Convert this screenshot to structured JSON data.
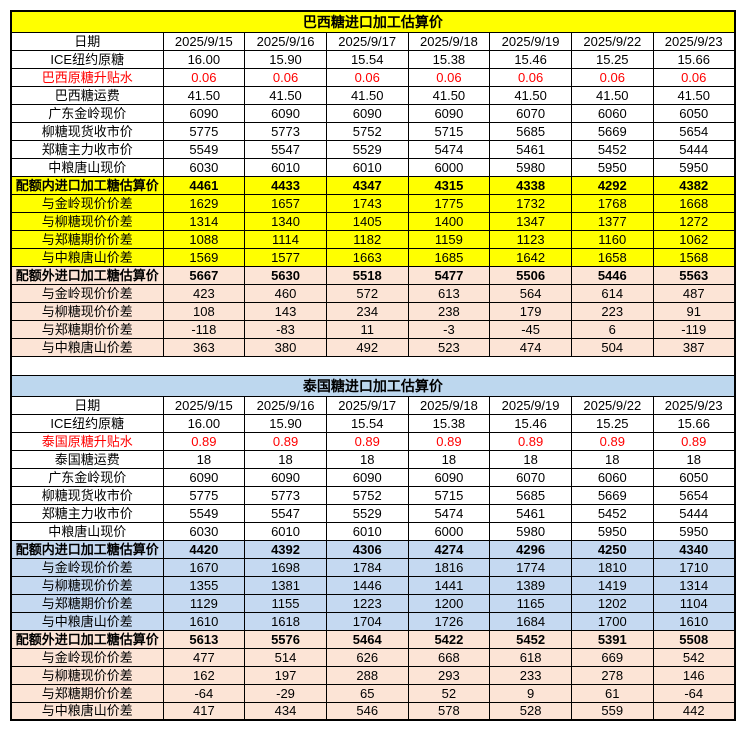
{
  "colors": {
    "brazil_title_bg": "#FFFF00",
    "brazil_quota_in_bg": "#FFFF00",
    "thailand_title_bg": "#BDD7EE",
    "thailand_quota_in_bg": "#C5D9F1",
    "quota_out_bg": "#FCE4D6",
    "red_text": "#FF0000",
    "border": "#000000",
    "default_cell_bg": "#FFFFFF"
  },
  "tables": [
    {
      "id": "brazil",
      "title": "巴西糖进口加工估算价",
      "title_bg_key": "brazil_title_bg",
      "quota_in_bg_key": "brazil_quota_in_bg",
      "date_label": "日期",
      "dates": [
        "2025/9/15",
        "2025/9/16",
        "2025/9/17",
        "2025/9/18",
        "2025/9/19",
        "2025/9/22",
        "2025/9/23"
      ],
      "rows": [
        {
          "label": "ICE纽约原糖",
          "style": "plain",
          "values": [
            "16.00",
            "15.90",
            "15.54",
            "15.38",
            "15.46",
            "15.25",
            "15.66"
          ]
        },
        {
          "label": "巴西原糖升贴水",
          "style": "red",
          "values": [
            "0.06",
            "0.06",
            "0.06",
            "0.06",
            "0.06",
            "0.06",
            "0.06"
          ]
        },
        {
          "label": "巴西糖运费",
          "style": "plain",
          "values": [
            "41.50",
            "41.50",
            "41.50",
            "41.50",
            "41.50",
            "41.50",
            "41.50"
          ]
        },
        {
          "label": "广东金岭现价",
          "style": "plain",
          "values": [
            "6090",
            "6090",
            "6090",
            "6090",
            "6070",
            "6060",
            "6050"
          ]
        },
        {
          "label": "柳糖现货收市价",
          "style": "plain",
          "values": [
            "5775",
            "5773",
            "5752",
            "5715",
            "5685",
            "5669",
            "5654"
          ]
        },
        {
          "label": "郑糖主力收市价",
          "style": "plain",
          "values": [
            "5549",
            "5547",
            "5529",
            "5474",
            "5461",
            "5452",
            "5444"
          ]
        },
        {
          "label": "中粮唐山现价",
          "style": "plain",
          "values": [
            "6030",
            "6010",
            "6010",
            "6000",
            "5980",
            "5950",
            "5950"
          ]
        },
        {
          "label": "配额内进口加工糖估算价",
          "style": "quota_in",
          "values": [
            "4461",
            "4433",
            "4347",
            "4315",
            "4338",
            "4292",
            "4382"
          ]
        },
        {
          "label": "与金岭现价价差",
          "style": "quota_in_diff",
          "values": [
            "1629",
            "1657",
            "1743",
            "1775",
            "1732",
            "1768",
            "1668"
          ]
        },
        {
          "label": "与柳糖现价价差",
          "style": "quota_in_diff",
          "values": [
            "1314",
            "1340",
            "1405",
            "1400",
            "1347",
            "1377",
            "1272"
          ]
        },
        {
          "label": "与郑糖期价价差",
          "style": "quota_in_diff",
          "values": [
            "1088",
            "1114",
            "1182",
            "1159",
            "1123",
            "1160",
            "1062"
          ]
        },
        {
          "label": "与中粮唐山价差",
          "style": "quota_in_diff",
          "values": [
            "1569",
            "1577",
            "1663",
            "1685",
            "1642",
            "1658",
            "1568"
          ]
        },
        {
          "label": "配额外进口加工糖估算价",
          "style": "quota_out",
          "values": [
            "5667",
            "5630",
            "5518",
            "5477",
            "5506",
            "5446",
            "5563"
          ]
        },
        {
          "label": "与金岭现价价差",
          "style": "quota_out_diff",
          "values": [
            "423",
            "460",
            "572",
            "613",
            "564",
            "614",
            "487"
          ]
        },
        {
          "label": "与柳糖现价价差",
          "style": "quota_out_diff",
          "values": [
            "108",
            "143",
            "234",
            "238",
            "179",
            "223",
            "91"
          ]
        },
        {
          "label": "与郑糖期价价差",
          "style": "quota_out_diff",
          "values": [
            "-118",
            "-83",
            "11",
            "-3",
            "-45",
            "6",
            "-119"
          ]
        },
        {
          "label": "与中粮唐山价差",
          "style": "quota_out_diff",
          "values": [
            "363",
            "380",
            "492",
            "523",
            "474",
            "504",
            "387"
          ]
        }
      ]
    },
    {
      "id": "thailand",
      "title": "泰国糖进口加工估算价",
      "title_bg_key": "thailand_title_bg",
      "quota_in_bg_key": "thailand_quota_in_bg",
      "date_label": "日期",
      "dates": [
        "2025/9/15",
        "2025/9/16",
        "2025/9/17",
        "2025/9/18",
        "2025/9/19",
        "2025/9/22",
        "2025/9/23"
      ],
      "rows": [
        {
          "label": "ICE纽约原糖",
          "style": "plain",
          "values": [
            "16.00",
            "15.90",
            "15.54",
            "15.38",
            "15.46",
            "15.25",
            "15.66"
          ]
        },
        {
          "label": "泰国原糖升贴水",
          "style": "red",
          "values": [
            "0.89",
            "0.89",
            "0.89",
            "0.89",
            "0.89",
            "0.89",
            "0.89"
          ]
        },
        {
          "label": "泰国糖运费",
          "style": "plain",
          "values": [
            "18",
            "18",
            "18",
            "18",
            "18",
            "18",
            "18"
          ]
        },
        {
          "label": "广东金岭现价",
          "style": "plain",
          "values": [
            "6090",
            "6090",
            "6090",
            "6090",
            "6070",
            "6060",
            "6050"
          ]
        },
        {
          "label": "柳糖现货收市价",
          "style": "plain",
          "values": [
            "5775",
            "5773",
            "5752",
            "5715",
            "5685",
            "5669",
            "5654"
          ]
        },
        {
          "label": "郑糖主力收市价",
          "style": "plain",
          "values": [
            "5549",
            "5547",
            "5529",
            "5474",
            "5461",
            "5452",
            "5444"
          ]
        },
        {
          "label": "中粮唐山现价",
          "style": "plain",
          "values": [
            "6030",
            "6010",
            "6010",
            "6000",
            "5980",
            "5950",
            "5950"
          ]
        },
        {
          "label": "配额内进口加工糖估算价",
          "style": "quota_in",
          "values": [
            "4420",
            "4392",
            "4306",
            "4274",
            "4296",
            "4250",
            "4340"
          ]
        },
        {
          "label": "与金岭现价价差",
          "style": "quota_in_diff",
          "values": [
            "1670",
            "1698",
            "1784",
            "1816",
            "1774",
            "1810",
            "1710"
          ]
        },
        {
          "label": "与柳糖现价价差",
          "style": "quota_in_diff",
          "values": [
            "1355",
            "1381",
            "1446",
            "1441",
            "1389",
            "1419",
            "1314"
          ]
        },
        {
          "label": "与郑糖期价价差",
          "style": "quota_in_diff",
          "values": [
            "1129",
            "1155",
            "1223",
            "1200",
            "1165",
            "1202",
            "1104"
          ]
        },
        {
          "label": "与中粮唐山价差",
          "style": "quota_in_diff",
          "values": [
            "1610",
            "1618",
            "1704",
            "1726",
            "1684",
            "1700",
            "1610"
          ]
        },
        {
          "label": "配额外进口加工糖估算价",
          "style": "quota_out",
          "values": [
            "5613",
            "5576",
            "5464",
            "5422",
            "5452",
            "5391",
            "5508"
          ]
        },
        {
          "label": "与金岭现价价差",
          "style": "quota_out_diff",
          "values": [
            "477",
            "514",
            "626",
            "668",
            "618",
            "669",
            "542"
          ]
        },
        {
          "label": "与柳糖现价价差",
          "style": "quota_out_diff",
          "values": [
            "162",
            "197",
            "288",
            "293",
            "233",
            "278",
            "146"
          ]
        },
        {
          "label": "与郑糖期价价差",
          "style": "quota_out_diff",
          "values": [
            "-64",
            "-29",
            "65",
            "52",
            "9",
            "61",
            "-64"
          ]
        },
        {
          "label": "与中粮唐山价差",
          "style": "quota_out_diff",
          "values": [
            "417",
            "434",
            "546",
            "578",
            "528",
            "559",
            "442"
          ]
        }
      ]
    }
  ]
}
